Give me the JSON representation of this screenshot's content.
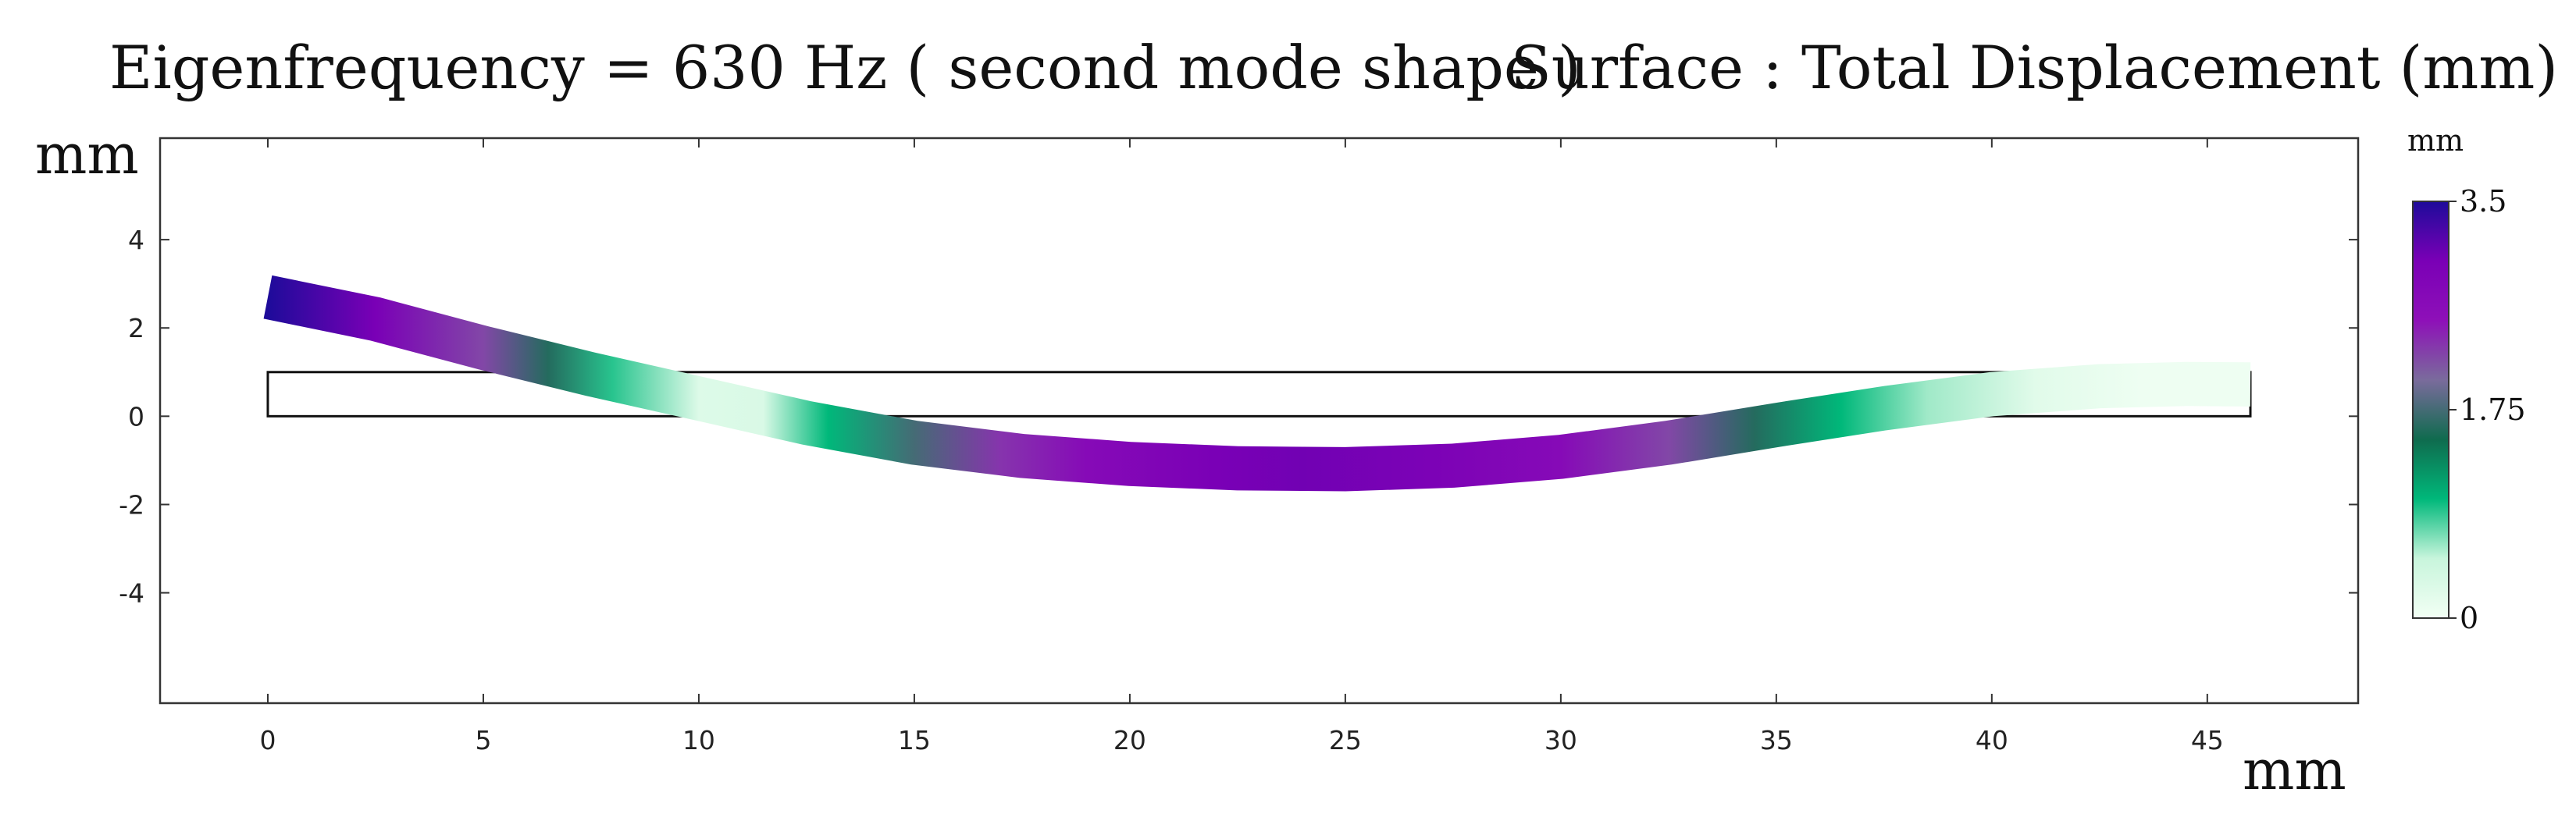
{
  "chart_data": {
    "type": "heatmap",
    "title_left": "Eigenfrequency = 630 Hz  ( second mode shape )",
    "title_right": "Surface : Total Displacement (mm)",
    "xlabel": "mm",
    "ylabel": "mm",
    "xlim": [
      -2.5,
      48.5
    ],
    "ylim": [
      -6.5,
      6.3
    ],
    "x_ticks": [
      0,
      5,
      10,
      15,
      20,
      25,
      30,
      35,
      40,
      45
    ],
    "x_tick_labels": [
      "0",
      "5",
      "10",
      "15",
      "20",
      "25",
      "30",
      "35",
      "40",
      "45"
    ],
    "y_ticks": [
      4,
      2,
      0,
      -2,
      -4
    ],
    "y_tick_labels": [
      "4",
      "2",
      "0",
      "-2",
      "-4"
    ],
    "undeformed_beam": {
      "x_range": [
        0,
        46
      ],
      "y_range": [
        0,
        1
      ]
    },
    "deformed_beam": {
      "thickness": 1,
      "centerline": [
        {
          "x": 0,
          "y": 2.7
        },
        {
          "x": 2.5,
          "y": 2.2
        },
        {
          "x": 5,
          "y": 1.55
        },
        {
          "x": 7.5,
          "y": 0.95
        },
        {
          "x": 10,
          "y": 0.4
        },
        {
          "x": 12.5,
          "y": -0.15
        },
        {
          "x": 15,
          "y": -0.6
        },
        {
          "x": 17.5,
          "y": -0.9
        },
        {
          "x": 20,
          "y": -1.08
        },
        {
          "x": 22.5,
          "y": -1.18
        },
        {
          "x": 25,
          "y": -1.2
        },
        {
          "x": 27.5,
          "y": -1.12
        },
        {
          "x": 30,
          "y": -0.92
        },
        {
          "x": 32.5,
          "y": -0.6
        },
        {
          "x": 35,
          "y": -0.2
        },
        {
          "x": 37.5,
          "y": 0.18
        },
        {
          "x": 40,
          "y": 0.5
        },
        {
          "x": 42.5,
          "y": 0.68
        },
        {
          "x": 44.5,
          "y": 0.73
        },
        {
          "x": 46,
          "y": 0.72
        }
      ],
      "displacement": [
        {
          "x": 0,
          "value": 3.5
        },
        {
          "x": 2.5,
          "value": 3.0
        },
        {
          "x": 5,
          "value": 2.2
        },
        {
          "x": 6.5,
          "value": 1.6
        },
        {
          "x": 8,
          "value": 0.9
        },
        {
          "x": 10,
          "value": 0.25
        },
        {
          "x": 11.5,
          "value": 0.3
        },
        {
          "x": 13,
          "value": 1.0
        },
        {
          "x": 15,
          "value": 1.75
        },
        {
          "x": 17,
          "value": 2.3
        },
        {
          "x": 19,
          "value": 2.7
        },
        {
          "x": 22,
          "value": 3.0
        },
        {
          "x": 24,
          "value": 3.05
        },
        {
          "x": 27,
          "value": 2.95
        },
        {
          "x": 30,
          "value": 2.7
        },
        {
          "x": 32.5,
          "value": 2.2
        },
        {
          "x": 34.5,
          "value": 1.6
        },
        {
          "x": 36.5,
          "value": 1.0
        },
        {
          "x": 38.5,
          "value": 0.6
        },
        {
          "x": 41,
          "value": 0.2
        },
        {
          "x": 43.5,
          "value": 0.05
        },
        {
          "x": 46,
          "value": 0.05
        }
      ]
    },
    "colorbar": {
      "unit": "mm",
      "min": 0,
      "max": 3.5,
      "tick_values": [
        3.5,
        1.75,
        0
      ],
      "tick_labels": [
        "3.5",
        "1.75",
        "0"
      ],
      "colors": [
        "#f2fff4",
        "#c8f5dc",
        "#00b87a",
        "#0f6b4e",
        "#7a6b9c",
        "#8e10b8",
        "#7a00b6",
        "#1e0b9a"
      ]
    }
  }
}
